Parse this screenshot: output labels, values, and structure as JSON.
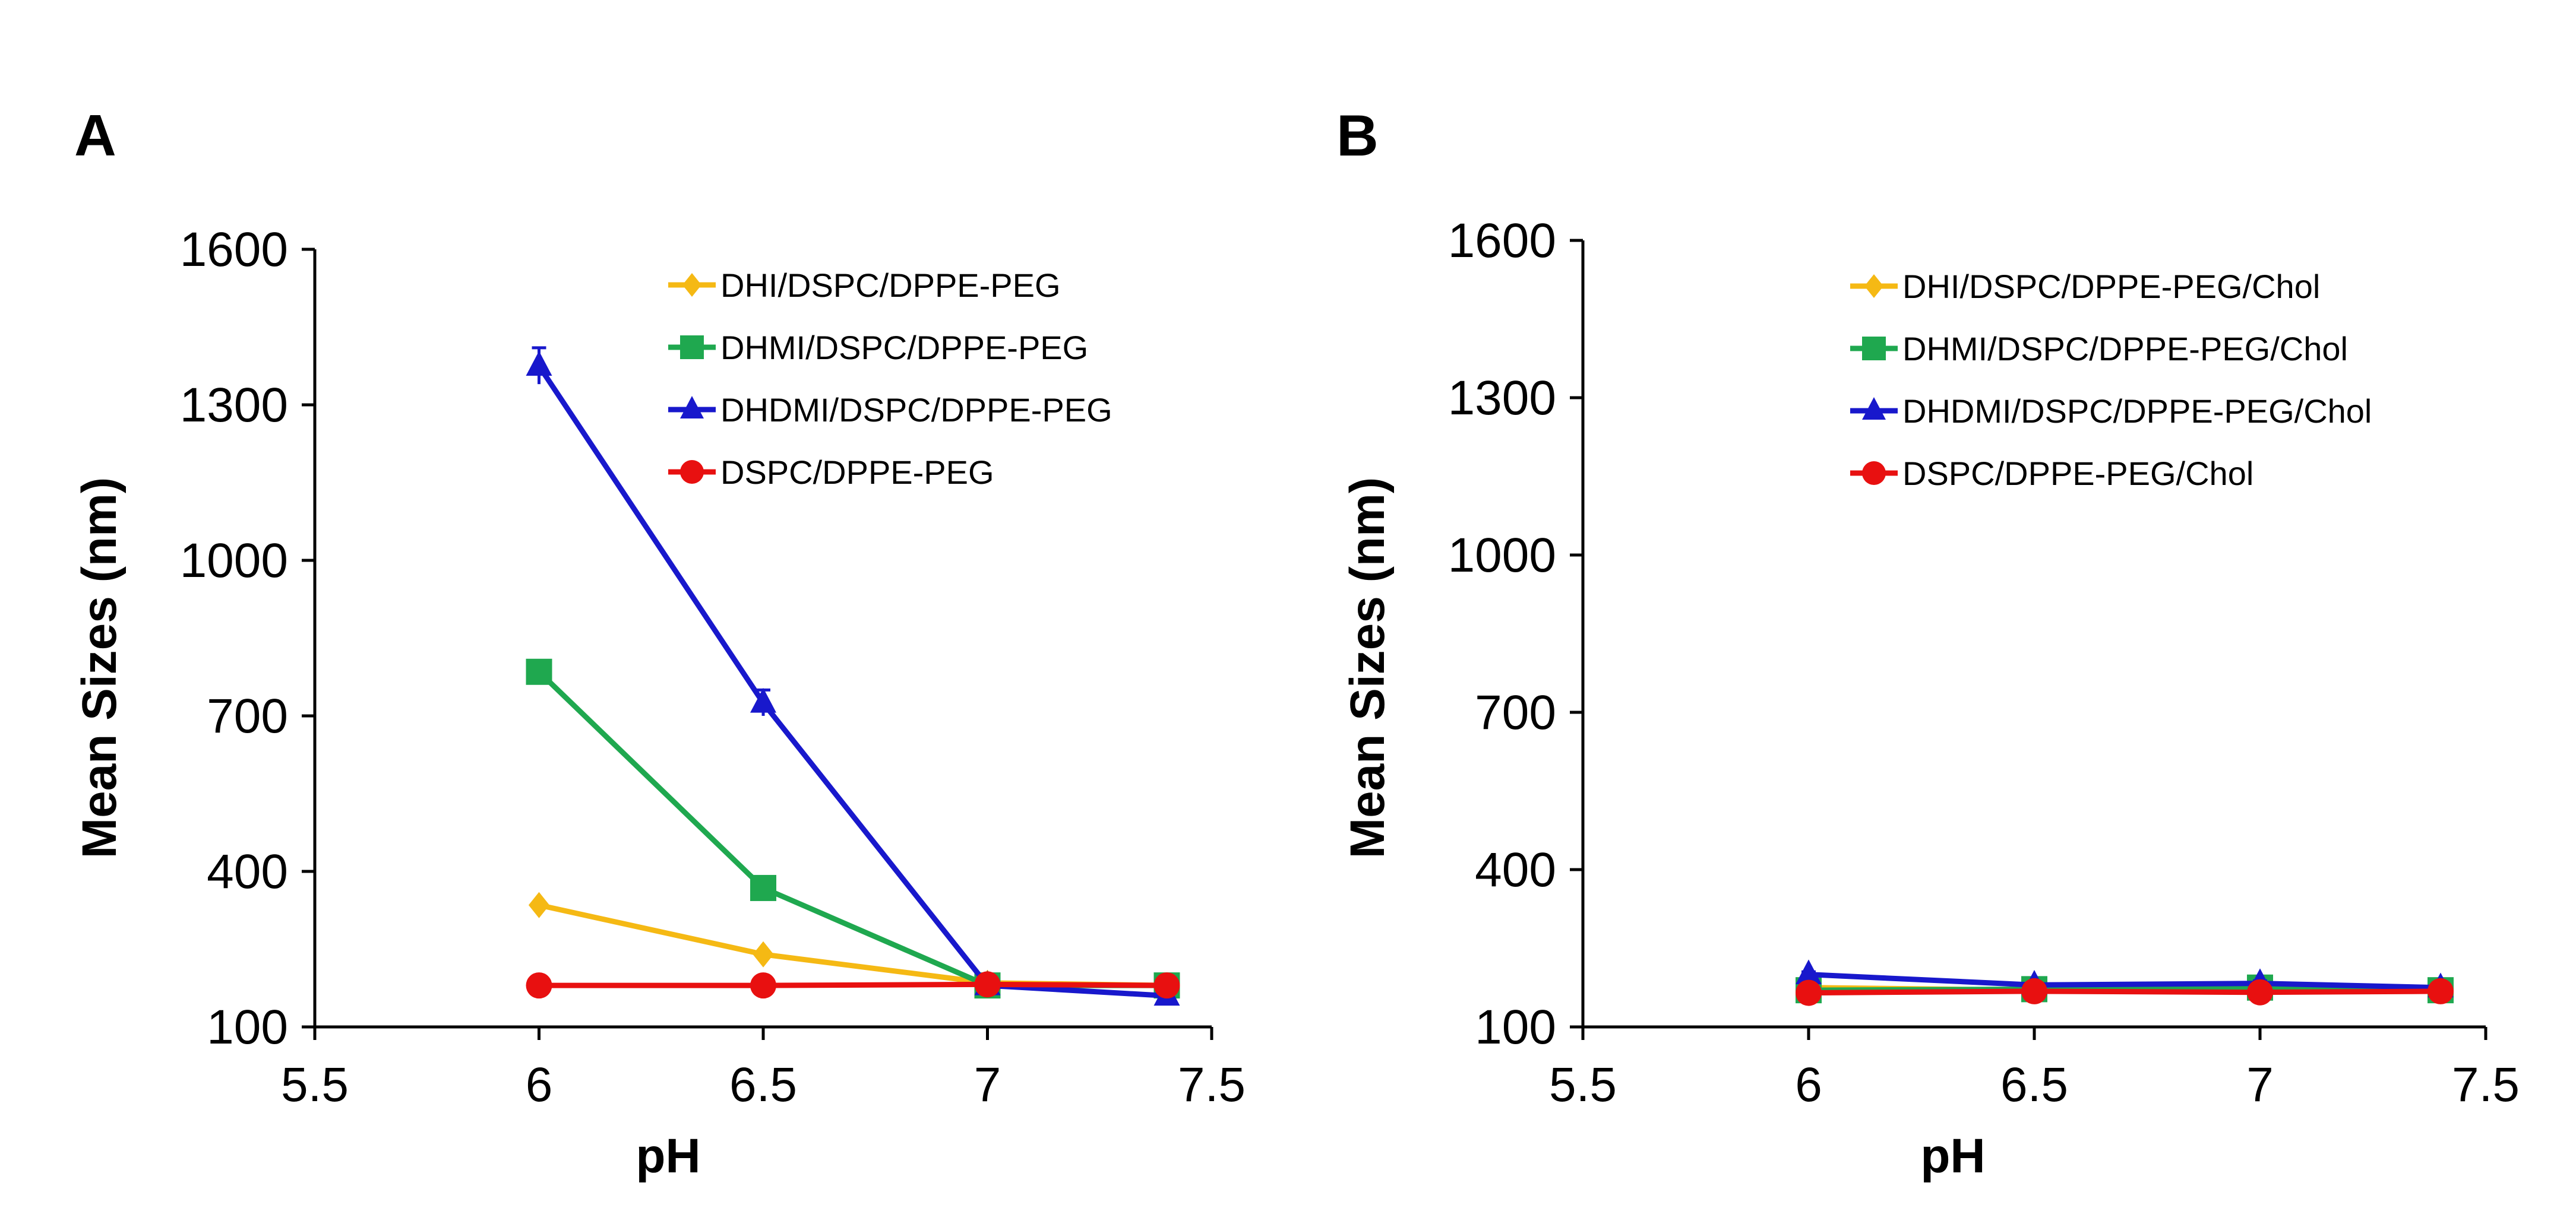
{
  "chart_data": [
    {
      "type": "line",
      "panel_letter": "A",
      "xlabel": "pH",
      "ylabel": "Mean Sizes (nm)",
      "xlim": [
        5.5,
        7.5
      ],
      "ylim": [
        100,
        1600
      ],
      "xticks": [
        "5.5",
        "6",
        "6.5",
        "7",
        "7.5"
      ],
      "yticks": [
        "100",
        "400",
        "700",
        "1000",
        "1300",
        "1600"
      ],
      "grid": false,
      "legend_position": "top-right",
      "x": [
        6,
        6.5,
        7,
        7.4
      ],
      "series": [
        {
          "name": "DHI/DSPC/DPPE-PEG",
          "color": "#F5B914",
          "marker": "diamond",
          "values": [
            335,
            240,
            185,
            180
          ],
          "errors": [
            5,
            5,
            5,
            5
          ]
        },
        {
          "name": "DHMI/DSPC/DPPE-PEG",
          "color": "#1FA84F",
          "marker": "square",
          "values": [
            785,
            368,
            180,
            180
          ],
          "errors": [
            15,
            10,
            5,
            5
          ]
        },
        {
          "name": "DHDMI/DSPC/DPPE-PEG",
          "color": "#1818CC",
          "marker": "triangle",
          "values": [
            1375,
            725,
            180,
            160
          ],
          "errors": [
            35,
            25,
            5,
            5
          ]
        },
        {
          "name": "DSPC/DPPE-PEG",
          "color": "#E81010",
          "marker": "circle",
          "values": [
            180,
            180,
            182,
            180
          ],
          "errors": [
            5,
            5,
            5,
            5
          ]
        }
      ]
    },
    {
      "type": "line",
      "panel_letter": "B",
      "xlabel": "pH",
      "ylabel": "Mean Sizes (nm)",
      "xlim": [
        5.5,
        7.5
      ],
      "ylim": [
        100,
        1600
      ],
      "xticks": [
        "5.5",
        "6",
        "6.5",
        "7",
        "7.5"
      ],
      "yticks": [
        "100",
        "400",
        "700",
        "1000",
        "1300",
        "1600"
      ],
      "grid": false,
      "legend_position": "top-right",
      "x": [
        6,
        6.5,
        7,
        7.4
      ],
      "series": [
        {
          "name": "DHI/DSPC/DPPE-PEG/Chol",
          "color": "#F5B914",
          "marker": "diamond",
          "values": [
            175,
            170,
            172,
            170
          ],
          "errors": [
            5,
            5,
            5,
            5
          ]
        },
        {
          "name": "DHMI/DSPC/DPPE-PEG/Chol",
          "color": "#1FA84F",
          "marker": "square",
          "values": [
            170,
            172,
            175,
            170
          ],
          "errors": [
            5,
            5,
            5,
            5
          ]
        },
        {
          "name": "DHDMI/DSPC/DPPE-PEG/Chol",
          "color": "#1818CC",
          "marker": "triangle",
          "values": [
            200,
            180,
            183,
            175
          ],
          "errors": [
            5,
            5,
            5,
            5
          ]
        },
        {
          "name": "DSPC/DPPE-PEG/Chol",
          "color": "#E81010",
          "marker": "circle",
          "values": [
            165,
            168,
            166,
            168
          ],
          "errors": [
            5,
            5,
            5,
            5
          ]
        }
      ]
    }
  ]
}
